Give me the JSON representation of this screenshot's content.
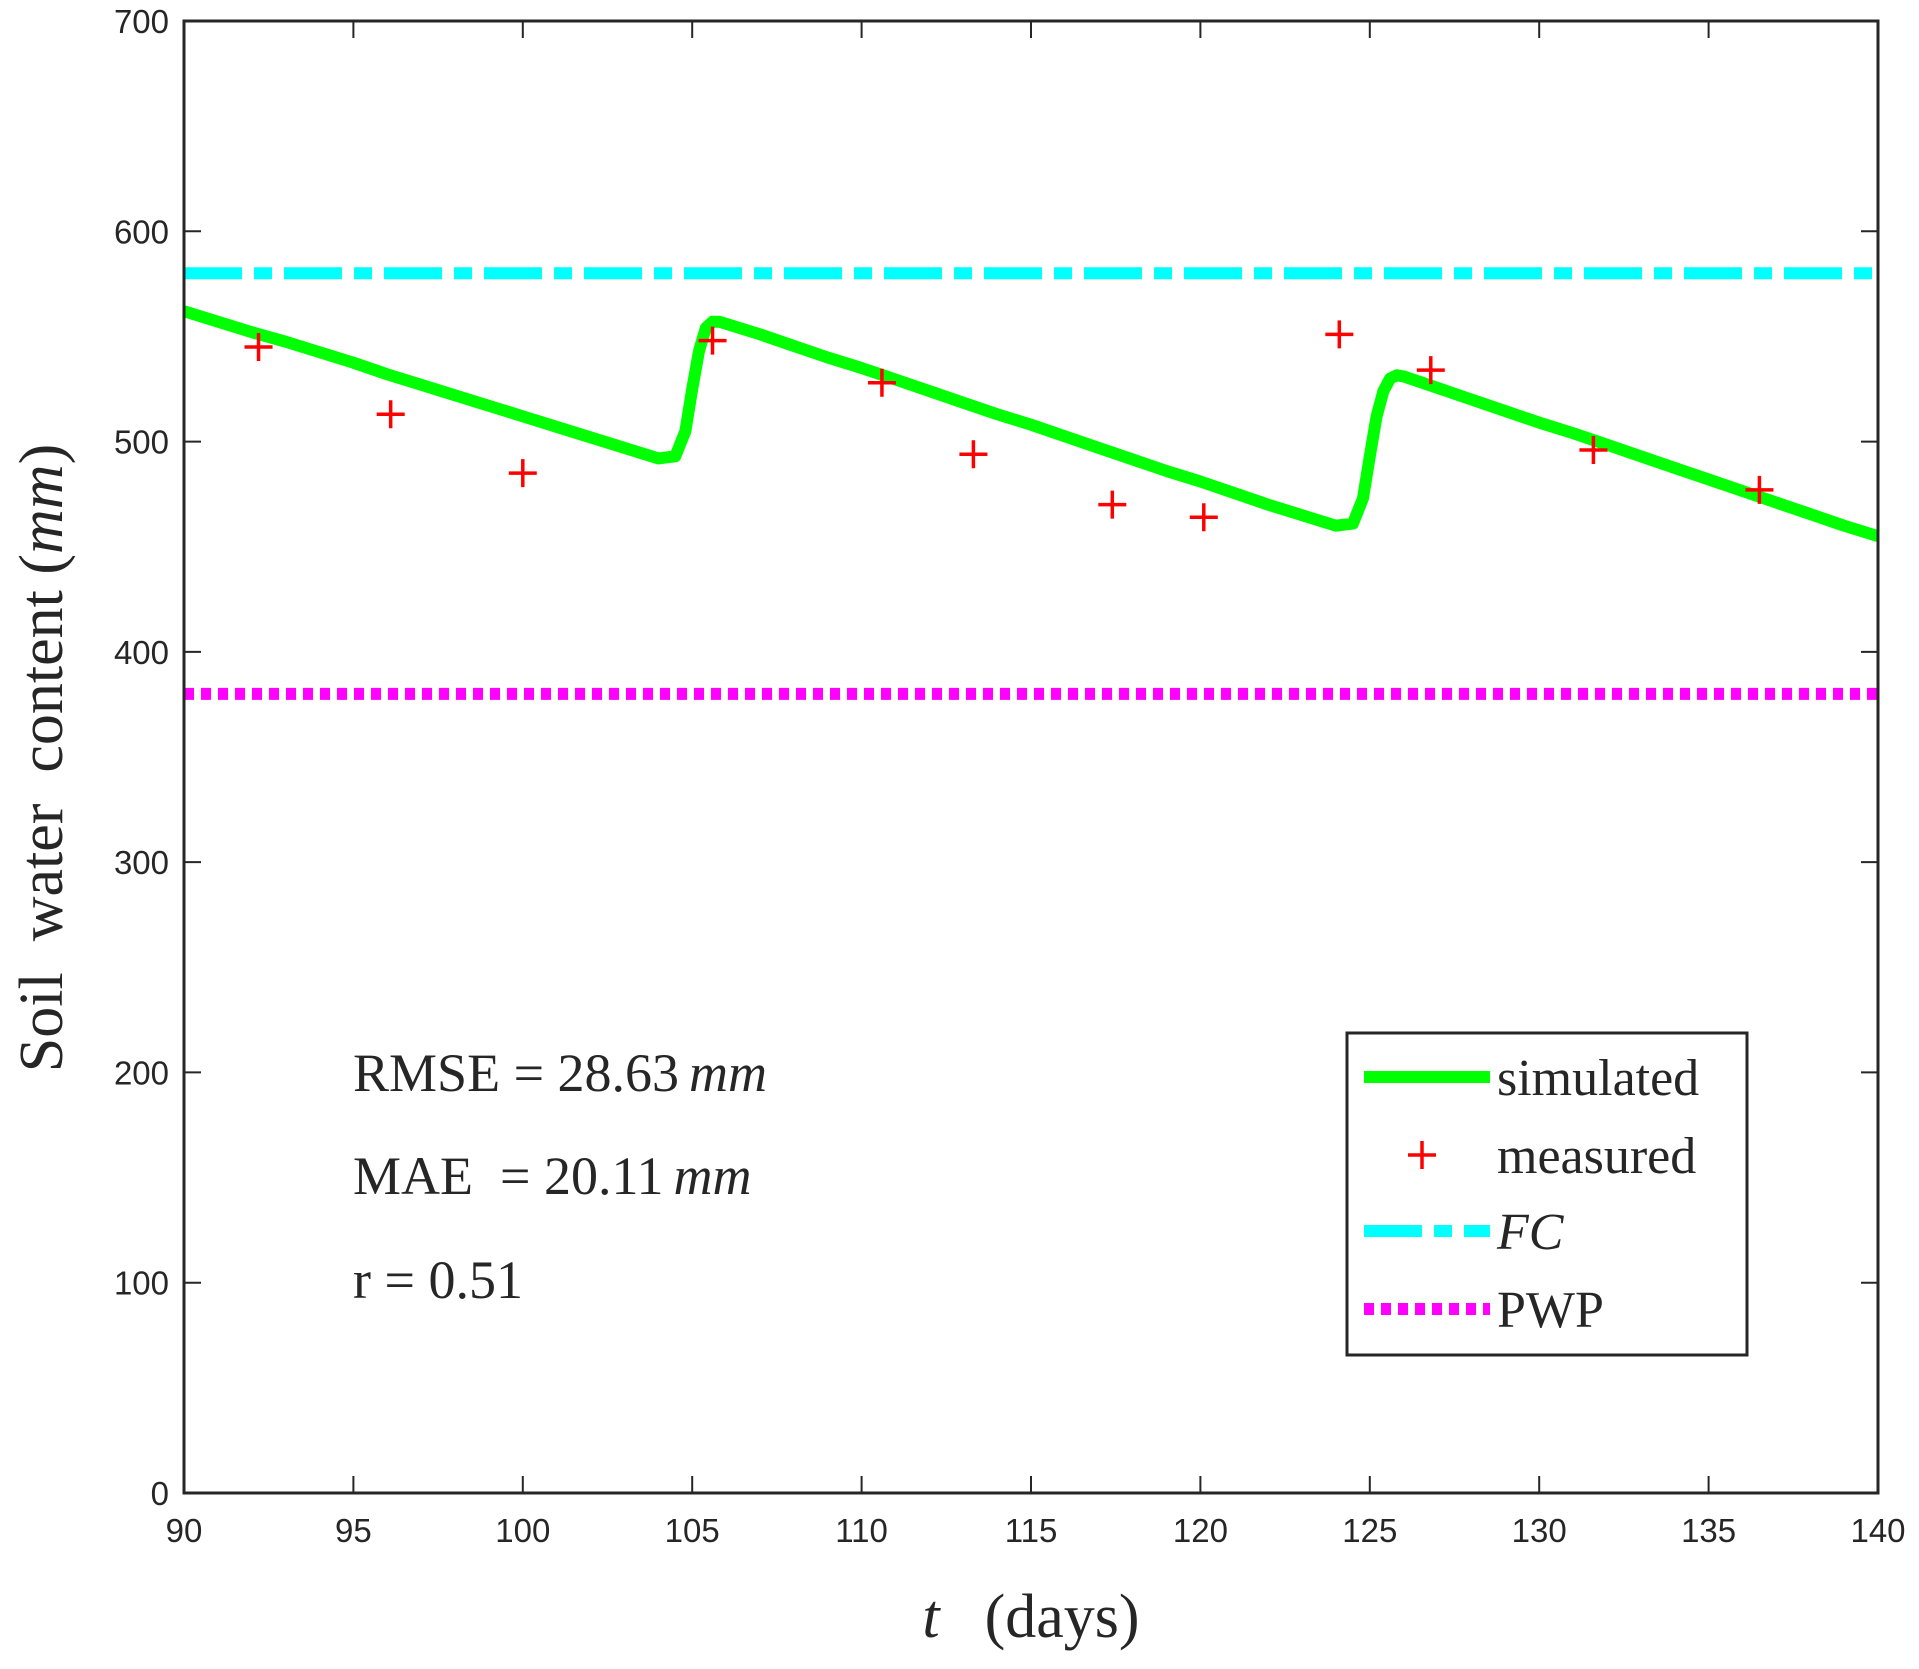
{
  "chart_data": {
    "type": "line",
    "xlabel": {
      "var": "t",
      "unit": "(days)"
    },
    "ylabel": {
      "main": "Soil  water  content (",
      "unit": "mm",
      "close": ")"
    },
    "xlim": [
      90,
      140
    ],
    "ylim": [
      0,
      700
    ],
    "xticks": [
      90,
      95,
      100,
      105,
      110,
      115,
      120,
      125,
      130,
      135,
      140
    ],
    "yticks": [
      0,
      100,
      200,
      300,
      400,
      500,
      600,
      700
    ],
    "series": [
      {
        "name": "simulated",
        "style": "solid",
        "color": "#00ff00",
        "x": [
          90,
          91,
          92,
          93,
          94,
          95,
          96,
          97,
          98,
          99,
          100,
          101,
          102,
          103,
          104,
          104.5,
          104.8,
          105.0,
          105.2,
          105.4,
          105.6,
          105.8,
          106,
          107,
          108,
          109,
          110,
          111,
          112,
          113,
          114,
          115,
          116,
          117,
          118,
          119,
          120,
          121,
          122,
          123,
          124,
          124.5,
          124.8,
          125.0,
          125.2,
          125.4,
          125.6,
          125.8,
          126,
          127,
          128,
          129,
          130,
          131,
          132,
          133,
          134,
          135,
          136,
          137,
          138,
          139,
          140
        ],
        "y": [
          562,
          557,
          552,
          547.5,
          542.5,
          537.5,
          532,
          527,
          522,
          517,
          512,
          507,
          502,
          497,
          492,
          493,
          505,
          525,
          543,
          554,
          557,
          557,
          556,
          551,
          545.5,
          540,
          535,
          529.5,
          524,
          518.5,
          513,
          508,
          502.5,
          497,
          491.5,
          486,
          481,
          475.5,
          470,
          465,
          460,
          461,
          473,
          493,
          512,
          524,
          530,
          531.5,
          531,
          525.5,
          520,
          514.5,
          509,
          504,
          498.5,
          493,
          487.5,
          482,
          476.5,
          471,
          465.5,
          460,
          455
        ]
      },
      {
        "name": "measured",
        "style": "markers",
        "marker": "+",
        "color": "#ff0000",
        "x": [
          92.2,
          96.1,
          100.0,
          105.6,
          110.6,
          113.3,
          117.4,
          120.1,
          124.1,
          126.8,
          131.6,
          136.5
        ],
        "y": [
          545,
          513,
          485,
          548,
          528,
          494,
          470,
          464,
          551,
          534,
          496,
          477
        ]
      },
      {
        "name": "FC",
        "style": "dashdot",
        "color": "#00ffff",
        "x": [
          90,
          140
        ],
        "y": [
          580,
          580
        ]
      },
      {
        "name": "PWP",
        "style": "dotted",
        "color": "#ff00ff",
        "x": [
          90,
          140
        ],
        "y": [
          380,
          380
        ]
      }
    ],
    "annotations": [
      {
        "label": "RMSE",
        "eq": " = ",
        "value": "28.63",
        "unit": "mm"
      },
      {
        "label": "MAE",
        "eq": "  = ",
        "value": "20.11",
        "unit": "mm"
      },
      {
        "label": "r",
        "eq": " = ",
        "value": "0.51",
        "unit": ""
      }
    ],
    "legend": {
      "location": "bottom-right",
      "entries": [
        "simulated",
        "measured",
        "FC",
        "PWP"
      ]
    },
    "grid": false
  }
}
